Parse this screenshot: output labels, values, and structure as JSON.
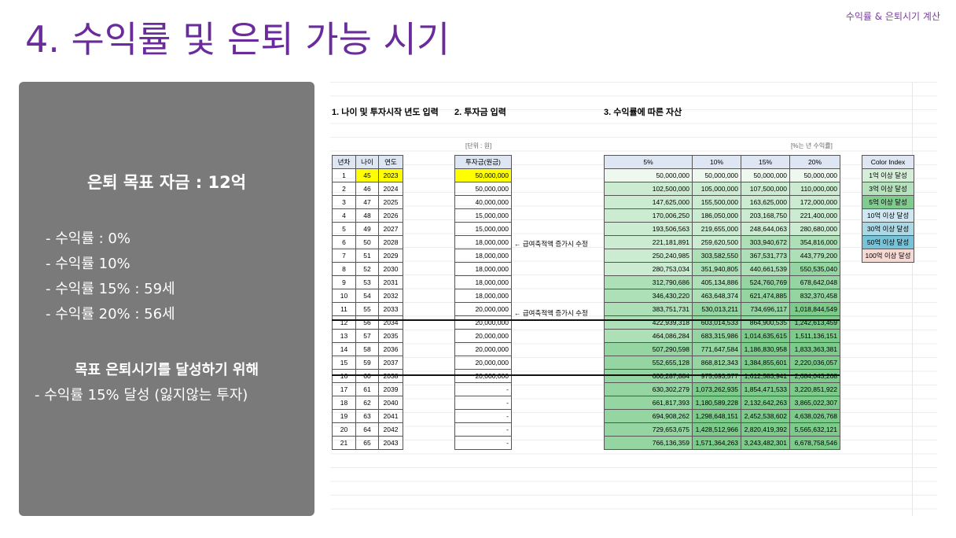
{
  "corner_label": "수익률 & 은퇴시기 계산",
  "title": "4. 수익률 및 은퇴 가능 시기",
  "panel": {
    "goal": "은퇴 목표 자금 : 12억",
    "rate_lines": [
      "- 수익률 : 0%",
      "- 수익률 10%",
      "- 수익률 15% : 59세",
      "- 수익률 20% : 56세"
    ],
    "achieve_heading": "목표 은퇴시기를 달성하기 위해",
    "achieve_text": "- 수익률 15% 달성 (잃지않는 투자)"
  },
  "sheet": {
    "sec1": "1. 나이 및 투자시작 년도 입력",
    "sec2": "2. 투자금 입력",
    "sec3": "3. 수익률에 따른 자산",
    "unit_left": "[단위 : 원]",
    "unit_right": "[%는 년 수익률]",
    "left_headers": [
      "년차",
      "나이",
      "연도"
    ],
    "invest_header": "투자금(원금)",
    "rate_headers": [
      "5%",
      "10%",
      "15%",
      "20%"
    ],
    "color_index_header": "Color Index",
    "color_index": [
      {
        "label": "1억 이상 달성",
        "color": "#d4eed7"
      },
      {
        "label": "3억 이상 달성",
        "color": "#b6e1bd"
      },
      {
        "label": "5억 이상 달성",
        "color": "#7fcc8e"
      },
      {
        "label": "10억 이상 달성",
        "color": "#cfe7f1"
      },
      {
        "label": "30억 이상 달성",
        "color": "#a9d8e6"
      },
      {
        "label": "50억 이상 달성",
        "color": "#79c3d8"
      },
      {
        "label": "100억 이상 달성",
        "color": "#f7d9d4"
      }
    ],
    "notes": [
      {
        "row": 5,
        "text": "← 급여축적액 증가시 수정"
      },
      {
        "row": 10,
        "text": "← 급여축적액 증가시 수정"
      }
    ],
    "rows": [
      {
        "n": "1",
        "age": "45",
        "year": "2023",
        "inv": "50,000,000",
        "v": [
          "50,000,000",
          "50,000,000",
          "50,000,000",
          "50,000,000"
        ]
      },
      {
        "n": "2",
        "age": "46",
        "year": "2024",
        "inv": "50,000,000",
        "v": [
          "102,500,000",
          "105,000,000",
          "107,500,000",
          "110,000,000"
        ]
      },
      {
        "n": "3",
        "age": "47",
        "year": "2025",
        "inv": "40,000,000",
        "v": [
          "147,625,000",
          "155,500,000",
          "163,625,000",
          "172,000,000"
        ]
      },
      {
        "n": "4",
        "age": "48",
        "year": "2026",
        "inv": "15,000,000",
        "v": [
          "170,006,250",
          "186,050,000",
          "203,168,750",
          "221,400,000"
        ]
      },
      {
        "n": "5",
        "age": "49",
        "year": "2027",
        "inv": "15,000,000",
        "v": [
          "193,506,563",
          "219,655,000",
          "248,644,063",
          "280,680,000"
        ]
      },
      {
        "n": "6",
        "age": "50",
        "year": "2028",
        "inv": "18,000,000",
        "v": [
          "221,181,891",
          "259,620,500",
          "303,940,672",
          "354,816,000"
        ]
      },
      {
        "n": "7",
        "age": "51",
        "year": "2029",
        "inv": "18,000,000",
        "v": [
          "250,240,985",
          "303,582,550",
          "367,531,773",
          "443,779,200"
        ]
      },
      {
        "n": "8",
        "age": "52",
        "year": "2030",
        "inv": "18,000,000",
        "v": [
          "280,753,034",
          "351,940,805",
          "440,661,539",
          "550,535,040"
        ]
      },
      {
        "n": "9",
        "age": "53",
        "year": "2031",
        "inv": "18,000,000",
        "v": [
          "312,790,686",
          "405,134,886",
          "524,760,769",
          "678,642,048"
        ]
      },
      {
        "n": "10",
        "age": "54",
        "year": "2032",
        "inv": "18,000,000",
        "v": [
          "346,430,220",
          "463,648,374",
          "621,474,885",
          "832,370,458"
        ]
      },
      {
        "n": "11",
        "age": "55",
        "year": "2033",
        "inv": "20,000,000",
        "v": [
          "383,751,731",
          "530,013,211",
          "734,696,117",
          "1,018,844,549"
        ]
      },
      {
        "n": "12",
        "age": "56",
        "year": "2034",
        "inv": "20,000,000",
        "v": [
          "422,939,318",
          "603,014,533",
          "864,900,535",
          "1,242,613,459"
        ]
      },
      {
        "n": "13",
        "age": "57",
        "year": "2035",
        "inv": "20,000,000",
        "v": [
          "464,086,284",
          "683,315,986",
          "1,014,635,615",
          "1,511,136,151"
        ]
      },
      {
        "n": "14",
        "age": "58",
        "year": "2036",
        "inv": "20,000,000",
        "v": [
          "507,290,598",
          "771,647,584",
          "1,186,830,958",
          "1,833,363,381"
        ]
      },
      {
        "n": "15",
        "age": "59",
        "year": "2037",
        "inv": "20,000,000",
        "v": [
          "552,655,128",
          "868,812,343",
          "1,384,855,601",
          "2,220,036,057"
        ]
      },
      {
        "n": "16",
        "age": "60",
        "year": "2038",
        "inv": "20,000,000",
        "v": [
          "600,287,884",
          "975,693,577",
          "1,612,583,941",
          "2,684,043,268"
        ]
      },
      {
        "n": "17",
        "age": "61",
        "year": "2039",
        "inv": "-",
        "v": [
          "630,302,279",
          "1,073,262,935",
          "1,854,471,533",
          "3,220,851,922"
        ]
      },
      {
        "n": "18",
        "age": "62",
        "year": "2040",
        "inv": "-",
        "v": [
          "661,817,393",
          "1,180,589,228",
          "2,132,642,263",
          "3,865,022,307"
        ]
      },
      {
        "n": "19",
        "age": "63",
        "year": "2041",
        "inv": "-",
        "v": [
          "694,908,262",
          "1,298,648,151",
          "2,452,538,602",
          "4,638,026,768"
        ]
      },
      {
        "n": "20",
        "age": "64",
        "year": "2042",
        "inv": "-",
        "v": [
          "729,653,675",
          "1,428,512,966",
          "2,820,419,392",
          "5,565,632,121"
        ]
      },
      {
        "n": "21",
        "age": "65",
        "year": "2043",
        "inv": "-",
        "v": [
          "766,136,359",
          "1,571,364,263",
          "3,243,482,301",
          "6,678,758,546"
        ]
      }
    ],
    "colors": {
      "highlight_yellow": "#ffff00",
      "header_blue": "#dde6f2"
    }
  }
}
